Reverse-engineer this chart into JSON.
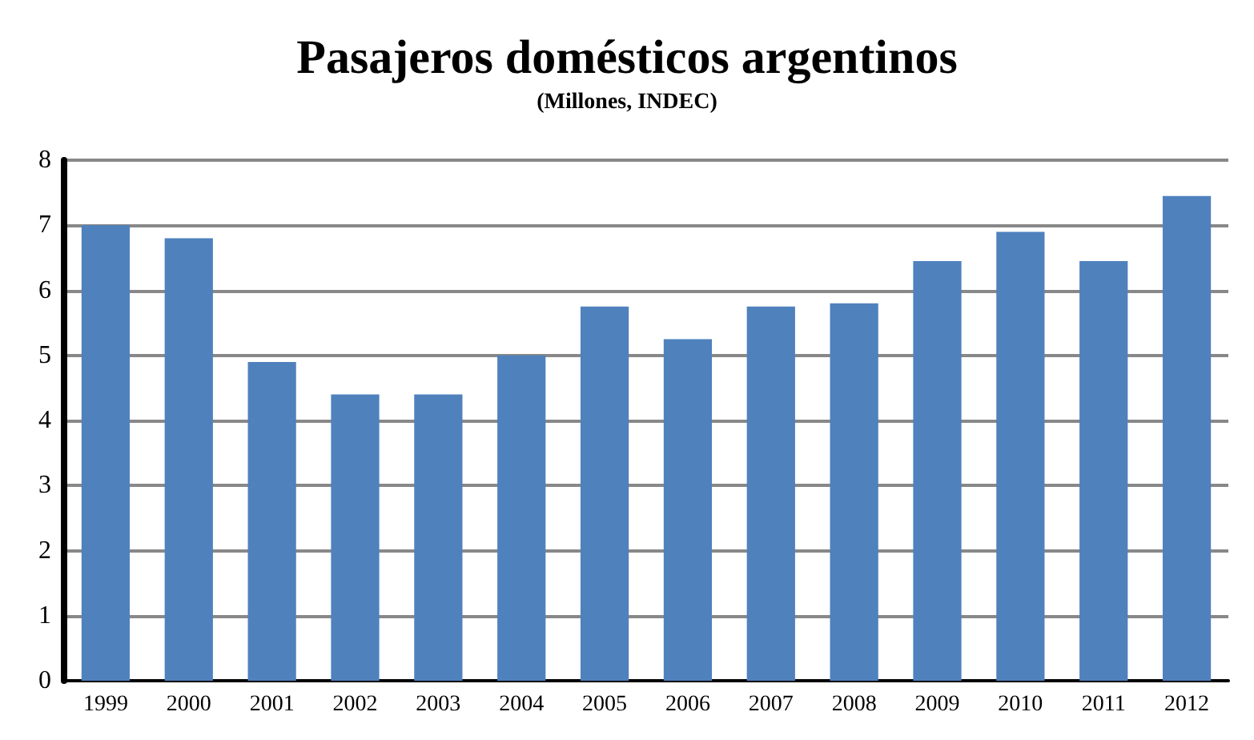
{
  "chart_data": {
    "type": "bar",
    "title": "Pasajeros domésticos argentinos",
    "subtitle": "(Millones, INDEC)",
    "categories": [
      "1999",
      "2000",
      "2001",
      "2002",
      "2003",
      "2004",
      "2005",
      "2006",
      "2007",
      "2008",
      "2009",
      "2010",
      "2011",
      "2012"
    ],
    "values": [
      7.0,
      6.8,
      4.9,
      4.4,
      4.4,
      5.0,
      5.75,
      5.25,
      5.75,
      5.8,
      6.45,
      6.9,
      6.45,
      7.45
    ],
    "color": "#4f81bd",
    "ylim": [
      0,
      8
    ],
    "yticks": [
      0,
      1,
      2,
      3,
      4,
      5,
      6,
      7,
      8
    ],
    "grid": "y"
  }
}
